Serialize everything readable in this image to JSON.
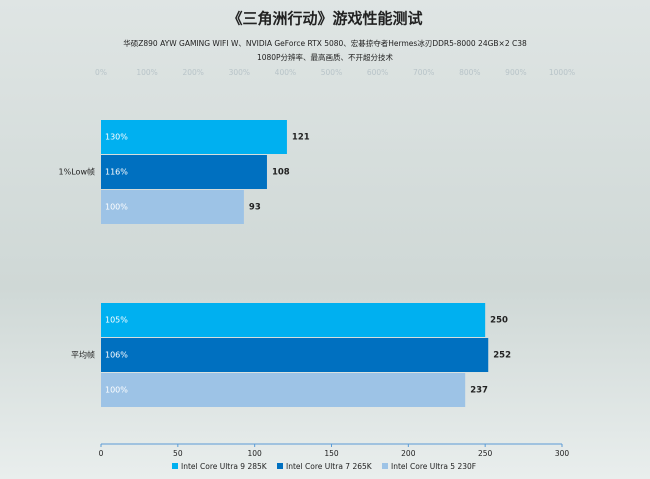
{
  "chart_data": {
    "type": "hbar",
    "title": "《三角洲行动》游戏性能测试",
    "subtitle": "华硕Z890 AYW GAMING WIFI W、NVIDIA GeForce RTX 5080、宏碁掠夺者Hermes冰刃DDR5-8000 24GB×2 C38",
    "subtitle2": "1080P分辨率、最高画质、不开超分技术",
    "categories": [
      "1%Low帧",
      "平均帧"
    ],
    "series": [
      {
        "name": "Intel Core Ultra 9 285K",
        "color": "#00b0f0",
        "values": [
          121,
          250
        ],
        "percent_labels": [
          "130%",
          "105%"
        ]
      },
      {
        "name": "Intel Core Ultra 7 265K",
        "color": "#0070c0",
        "values": [
          108,
          252
        ],
        "percent_labels": [
          "116%",
          "106%"
        ]
      },
      {
        "name": "Intel Core Ultra 5 230F",
        "color": "#9dc3e6",
        "values": [
          93,
          237
        ],
        "percent_labels": [
          "100%",
          "100%"
        ]
      }
    ],
    "xlim": [
      0,
      300
    ],
    "xticks": [
      0,
      50,
      100,
      150,
      200,
      250,
      300
    ],
    "x2lim": [
      0,
      1000
    ],
    "x2ticks": [
      {
        "value": 0,
        "label": "0%"
      },
      {
        "value": 100,
        "label": "100%"
      },
      {
        "value": 200,
        "label": "200%"
      },
      {
        "value": 300,
        "label": "300%"
      },
      {
        "value": 400,
        "label": "400%"
      },
      {
        "value": 500,
        "label": "500%"
      },
      {
        "value": 600,
        "label": "600%"
      },
      {
        "value": 700,
        "label": "700%"
      },
      {
        "value": 800,
        "label": "800%"
      },
      {
        "value": 900,
        "label": "900%"
      },
      {
        "value": 1000,
        "label": "1000%"
      }
    ],
    "legend": "bottom"
  }
}
